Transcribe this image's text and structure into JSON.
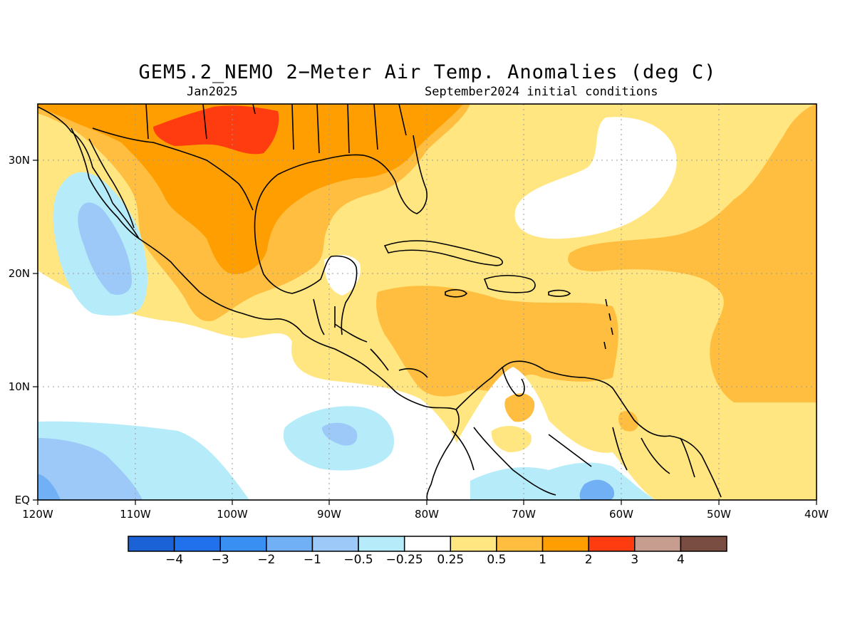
{
  "header": {
    "title": "GEM5.2_NEMO 2−Meter Air Temp. Anomalies (deg C)",
    "valid_month": "Jan2025",
    "initial_conditions": "September2024 initial conditions"
  },
  "axes": {
    "lon_labels": [
      "120W",
      "110W",
      "100W",
      "90W",
      "80W",
      "70W",
      "60W",
      "50W",
      "40W"
    ],
    "lat_labels": [
      "30N",
      "20N",
      "10N",
      "EQ"
    ],
    "lon_range": [
      -120,
      -40
    ],
    "lat_range": [
      0,
      35
    ]
  },
  "colorbar": {
    "labels": [
      "−4",
      "−3",
      "−2",
      "−1",
      "−0.5",
      "−0.25",
      "0.25",
      "0.5",
      "1",
      "2",
      "3",
      "4"
    ],
    "bins": [
      {
        "range": "< -4",
        "color": "#1a62d6"
      },
      {
        "range": "-4 to -3",
        "color": "#2170ec"
      },
      {
        "range": "-3 to -2",
        "color": "#3a8ff2"
      },
      {
        "range": "-2 to -1",
        "color": "#72b0f5"
      },
      {
        "range": "-1 to -0.5",
        "color": "#9cc9f8"
      },
      {
        "range": "-0.5 to -0.25",
        "color": "#b6ecfa"
      },
      {
        "range": "-0.25 to 0.25",
        "color": "#ffffff"
      },
      {
        "range": "0.25 to 0.5",
        "color": "#ffe680"
      },
      {
        "range": "0.5 to 1",
        "color": "#ffbe40"
      },
      {
        "range": "1 to 2",
        "color": "#ff9e00"
      },
      {
        "range": "2 to 3",
        "color": "#ff3b10"
      },
      {
        "range": "3 to 4",
        "color": "#c69d8f"
      },
      {
        "range": "> 4",
        "color": "#7a4d42"
      }
    ]
  }
}
